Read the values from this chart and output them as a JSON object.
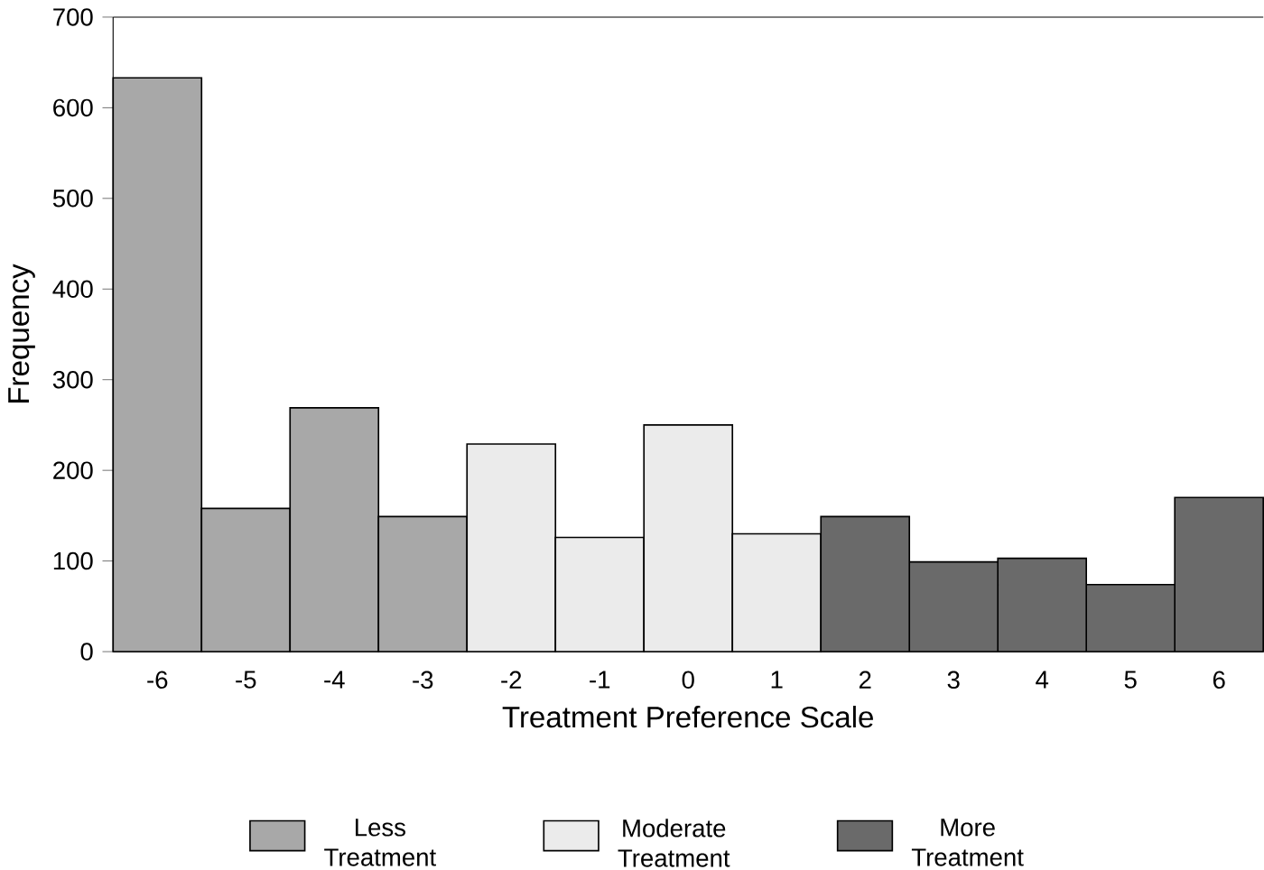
{
  "chart_data": {
    "type": "bar",
    "xlabel": "Treatment Preference Scale",
    "ylabel": "Frequency",
    "categories": [
      "-6",
      "-5",
      "-4",
      "-3",
      "-2",
      "-1",
      "0",
      "1",
      "2",
      "3",
      "4",
      "5",
      "6"
    ],
    "series": [
      {
        "name": "Less Treatment",
        "color": "#a8a8a8",
        "values": [
          633,
          158,
          269,
          149,
          null,
          null,
          null,
          null,
          null,
          null,
          null,
          null,
          null
        ]
      },
      {
        "name": "Moderate Treatment",
        "color": "#ebebeb",
        "values": [
          null,
          null,
          null,
          null,
          229,
          126,
          250,
          130,
          null,
          null,
          null,
          null,
          null
        ]
      },
      {
        "name": "More Treatment",
        "color": "#6a6a6a",
        "values": [
          null,
          null,
          null,
          null,
          null,
          null,
          null,
          null,
          149,
          99,
          103,
          74,
          170
        ]
      }
    ],
    "ylim": [
      0,
      700
    ],
    "yticks": [
      0,
      100,
      200,
      300,
      400,
      500,
      600,
      700
    ],
    "legend": "bottom",
    "grid": false
  }
}
